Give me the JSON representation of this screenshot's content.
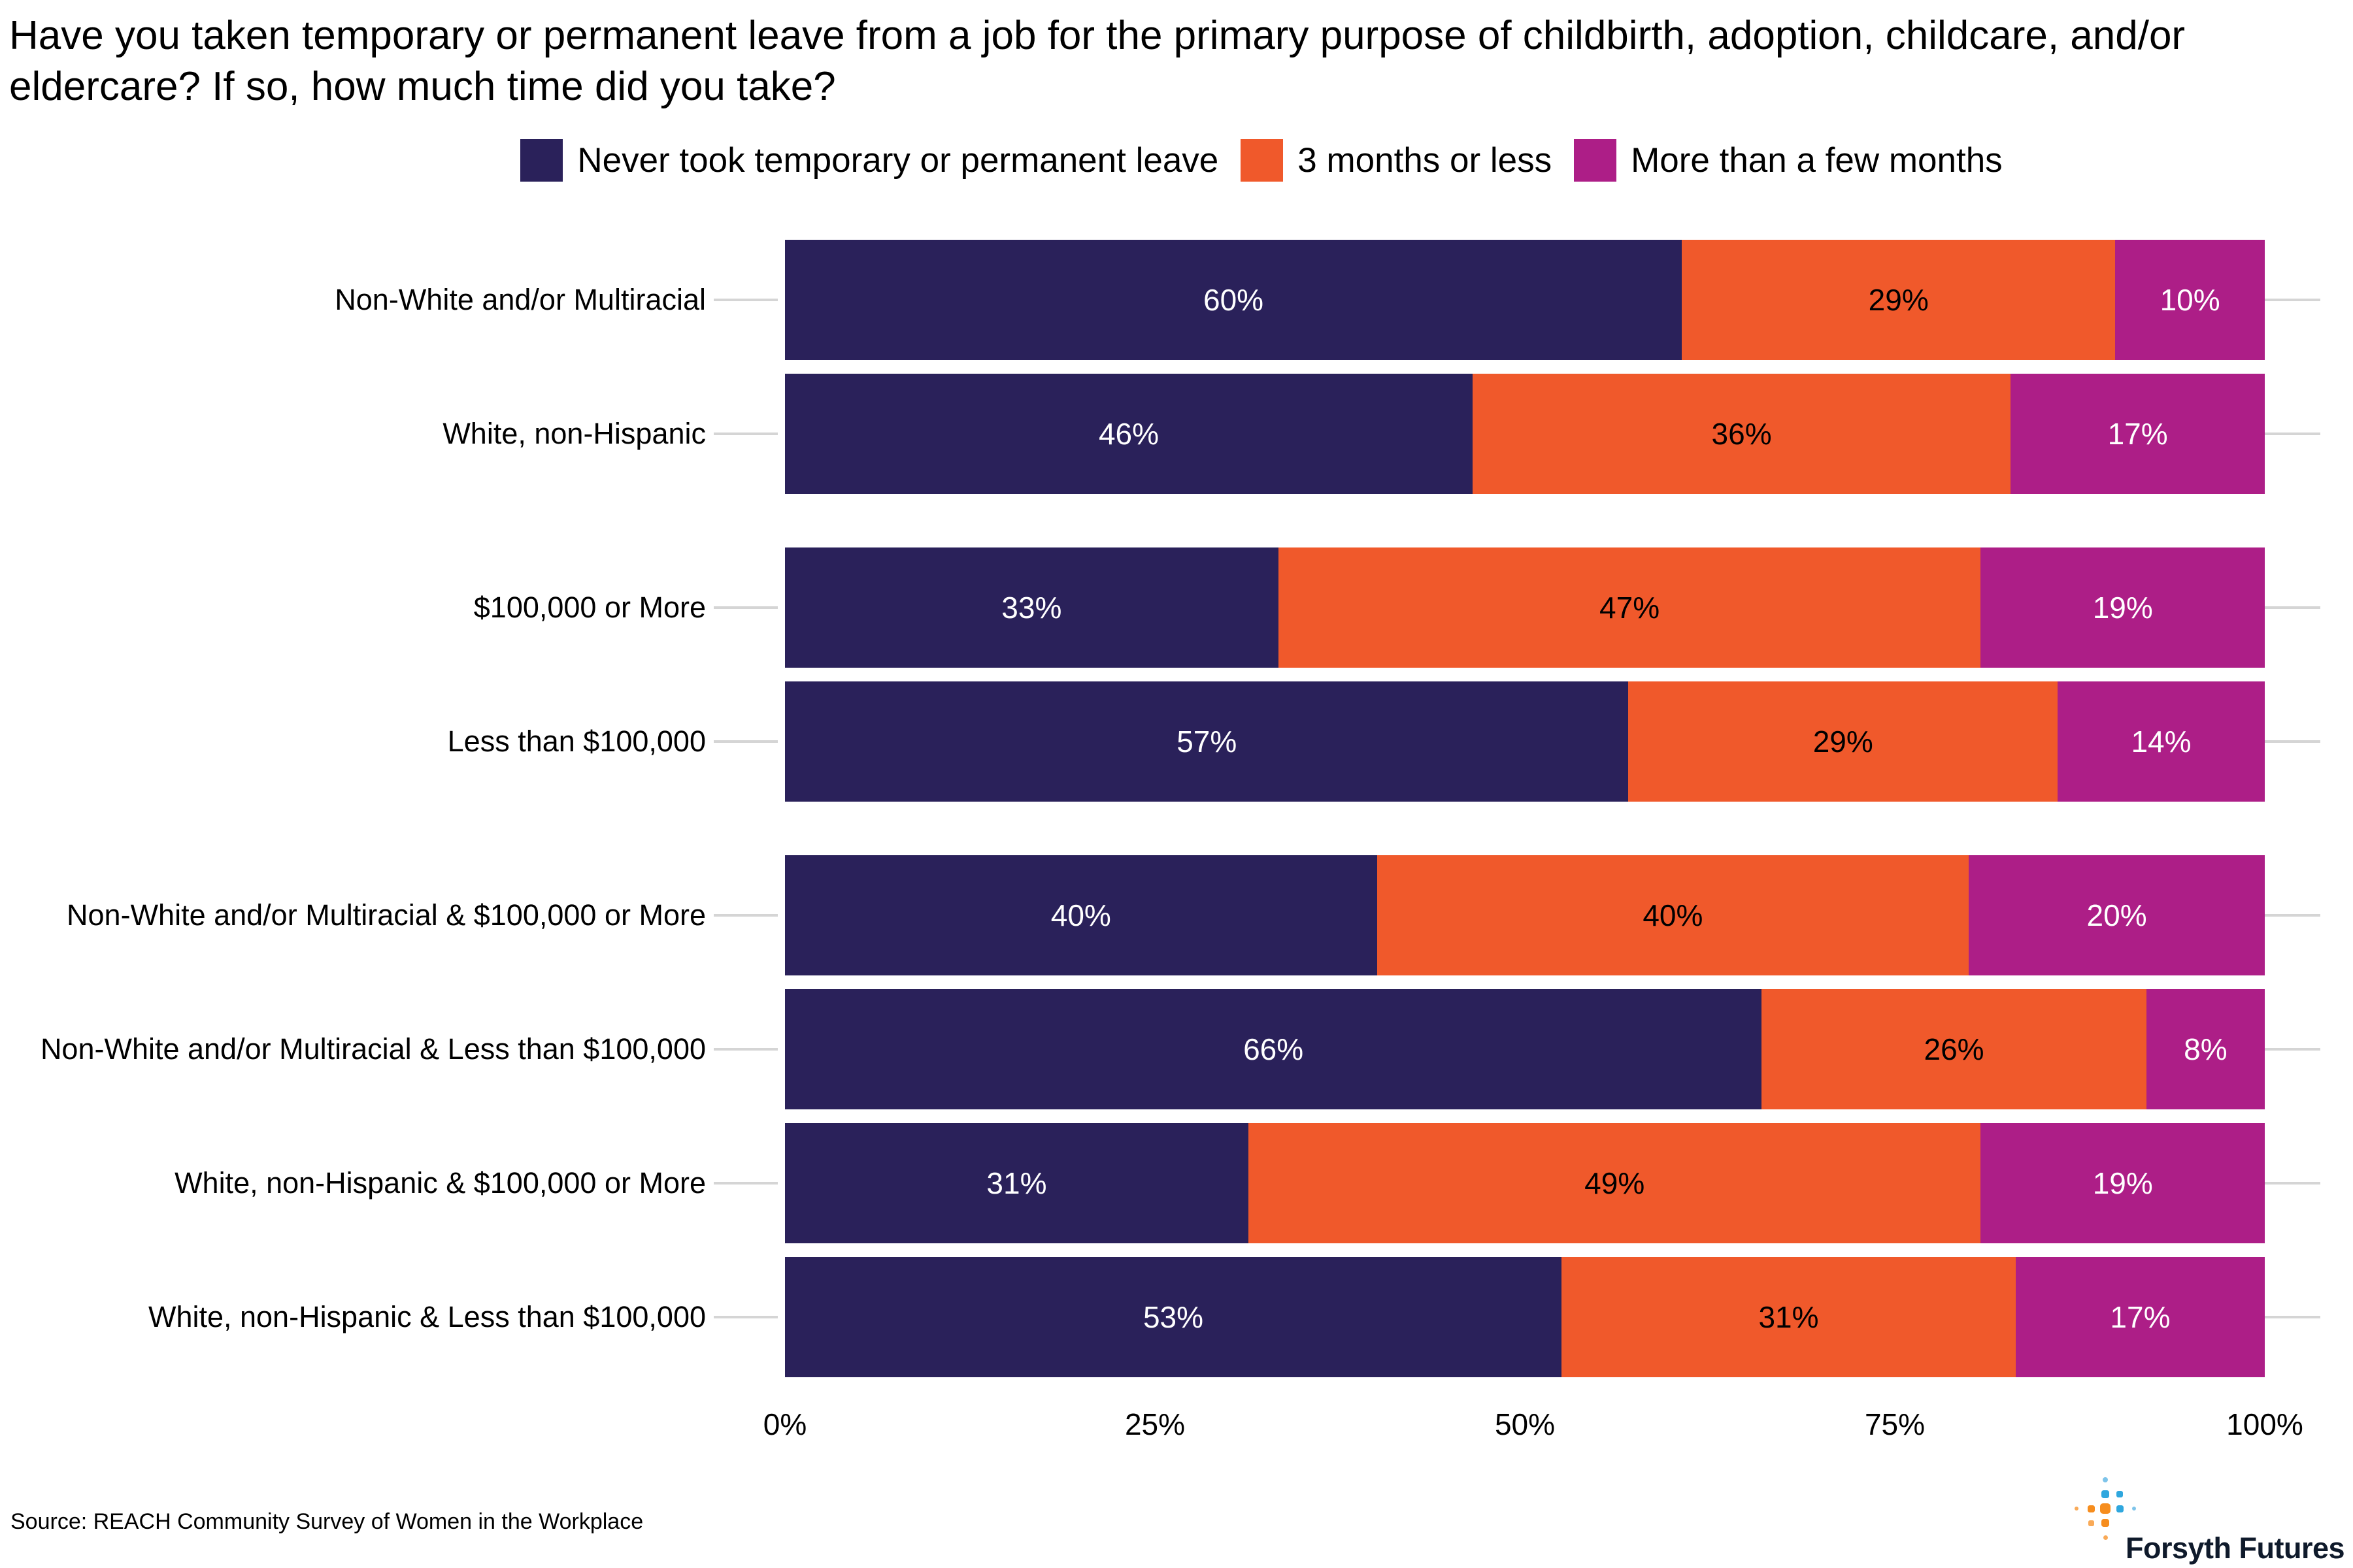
{
  "title": "Have you taken temporary or permanent leave from a job for the primary purpose of childbirth, adoption, childcare, and/or eldercare? If so, how much time did you take?",
  "source": "Source: REACH Community Survey of Women in the Workplace",
  "logo": {
    "text": "Forsyth Futures",
    "icon": "dotted-cross-icon"
  },
  "colors": {
    "series": [
      "#2A215A",
      "#F0592B",
      "#AD1E87"
    ],
    "series_label_text": [
      "#FFFFFF",
      "#000000",
      "#FFFFFF"
    ],
    "grid": "#D5D5D5",
    "logo_blue": "#2FA7DE",
    "logo_light_blue": "#7EC4EA",
    "logo_orange": "#F68D1E",
    "logo_light_orange": "#F9AA58",
    "logo_text": "#0F1A2B"
  },
  "chart_data": {
    "type": "bar",
    "orientation": "horizontal",
    "stacked": true,
    "title": "Have you taken temporary or permanent leave from a job for the primary purpose of childbirth, adoption, childcare, and/or eldercare? If so, how much time did you take?",
    "categories": [
      "Non-White and/or Multiracial",
      "White, non-Hispanic",
      "$100,000 or More",
      "Less than $100,000",
      "Non-White and/or Multiracial & $100,000 or More",
      "Non-White and/or Multiracial & Less than $100,000",
      "White, non-Hispanic & $100,000 or More",
      "White, non-Hispanic & Less than $100,000"
    ],
    "category_groups": [
      [
        "Non-White and/or Multiracial",
        "White, non-Hispanic"
      ],
      [
        "$100,000 or More",
        "Less than $100,000"
      ],
      [
        "Non-White and/or Multiracial & $100,000 or More",
        "Non-White and/or Multiracial & Less than $100,000",
        "White, non-Hispanic & $100,000 or More",
        "White, non-Hispanic & Less than $100,000"
      ]
    ],
    "series": [
      {
        "name": "Never took temporary or permanent leave",
        "values": [
          60,
          46,
          33,
          57,
          40,
          66,
          31,
          53
        ]
      },
      {
        "name": "3 months or less",
        "values": [
          29,
          36,
          47,
          29,
          40,
          26,
          49,
          31
        ]
      },
      {
        "name": "More than a few months",
        "values": [
          10,
          17,
          19,
          14,
          20,
          8,
          19,
          17
        ]
      }
    ],
    "value_labels": "percent",
    "xlabel": "",
    "ylabel": "",
    "xlim": [
      0,
      100
    ],
    "x_ticks": [
      "0%",
      "25%",
      "50%",
      "75%",
      "100%"
    ],
    "legend_position": "top",
    "grid": "category lines visible beyond bar ends"
  }
}
